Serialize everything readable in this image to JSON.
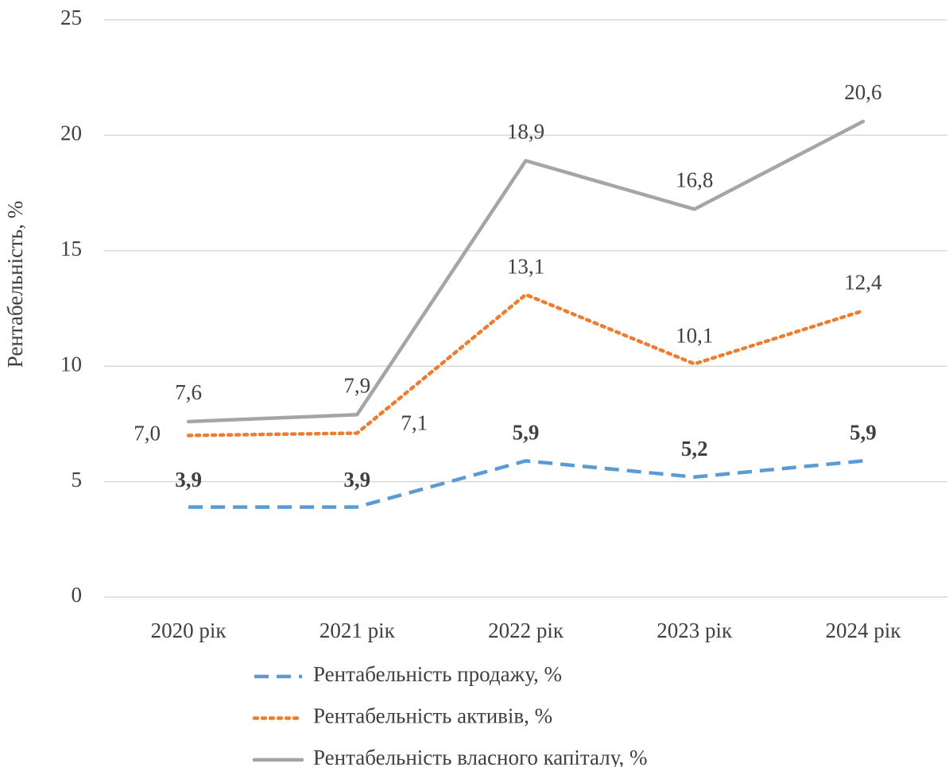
{
  "chart_data": {
    "type": "line",
    "y_label": "Рентабельність, %",
    "categories": [
      "2020 рік",
      "2021 рік",
      "2022 рік",
      "2023 рік",
      "2024 рік"
    ],
    "series": [
      {
        "name": "Рентабельність продажу, %",
        "color": "#5b9bd5",
        "dash": "dashed",
        "bold_labels": true,
        "values": [
          3.9,
          3.9,
          5.9,
          5.2,
          5.9
        ],
        "value_labels": [
          "3,9",
          "3,9",
          "5,9",
          "5,2",
          "5,9"
        ]
      },
      {
        "name": "Рентабельність активів, %",
        "color": "#ed7d31",
        "dash": "dotted",
        "bold_labels": false,
        "values": [
          7.0,
          7.1,
          13.1,
          10.1,
          12.4
        ],
        "value_labels": [
          "7,0",
          "7,1",
          "13,1",
          "10,1",
          "12,4"
        ]
      },
      {
        "name": "Рентабельність власного капіталу, %",
        "color": "#a5a5a5",
        "dash": "solid",
        "bold_labels": false,
        "values": [
          7.6,
          7.9,
          18.9,
          16.8,
          20.6
        ],
        "value_labels": [
          "7,6",
          "7,9",
          "18,9",
          "16,8",
          "20,6"
        ]
      }
    ],
    "ylim": [
      0,
      25
    ],
    "yticks": [
      0,
      5,
      10,
      15,
      20,
      25
    ],
    "grid": true,
    "legend": "bottom"
  }
}
